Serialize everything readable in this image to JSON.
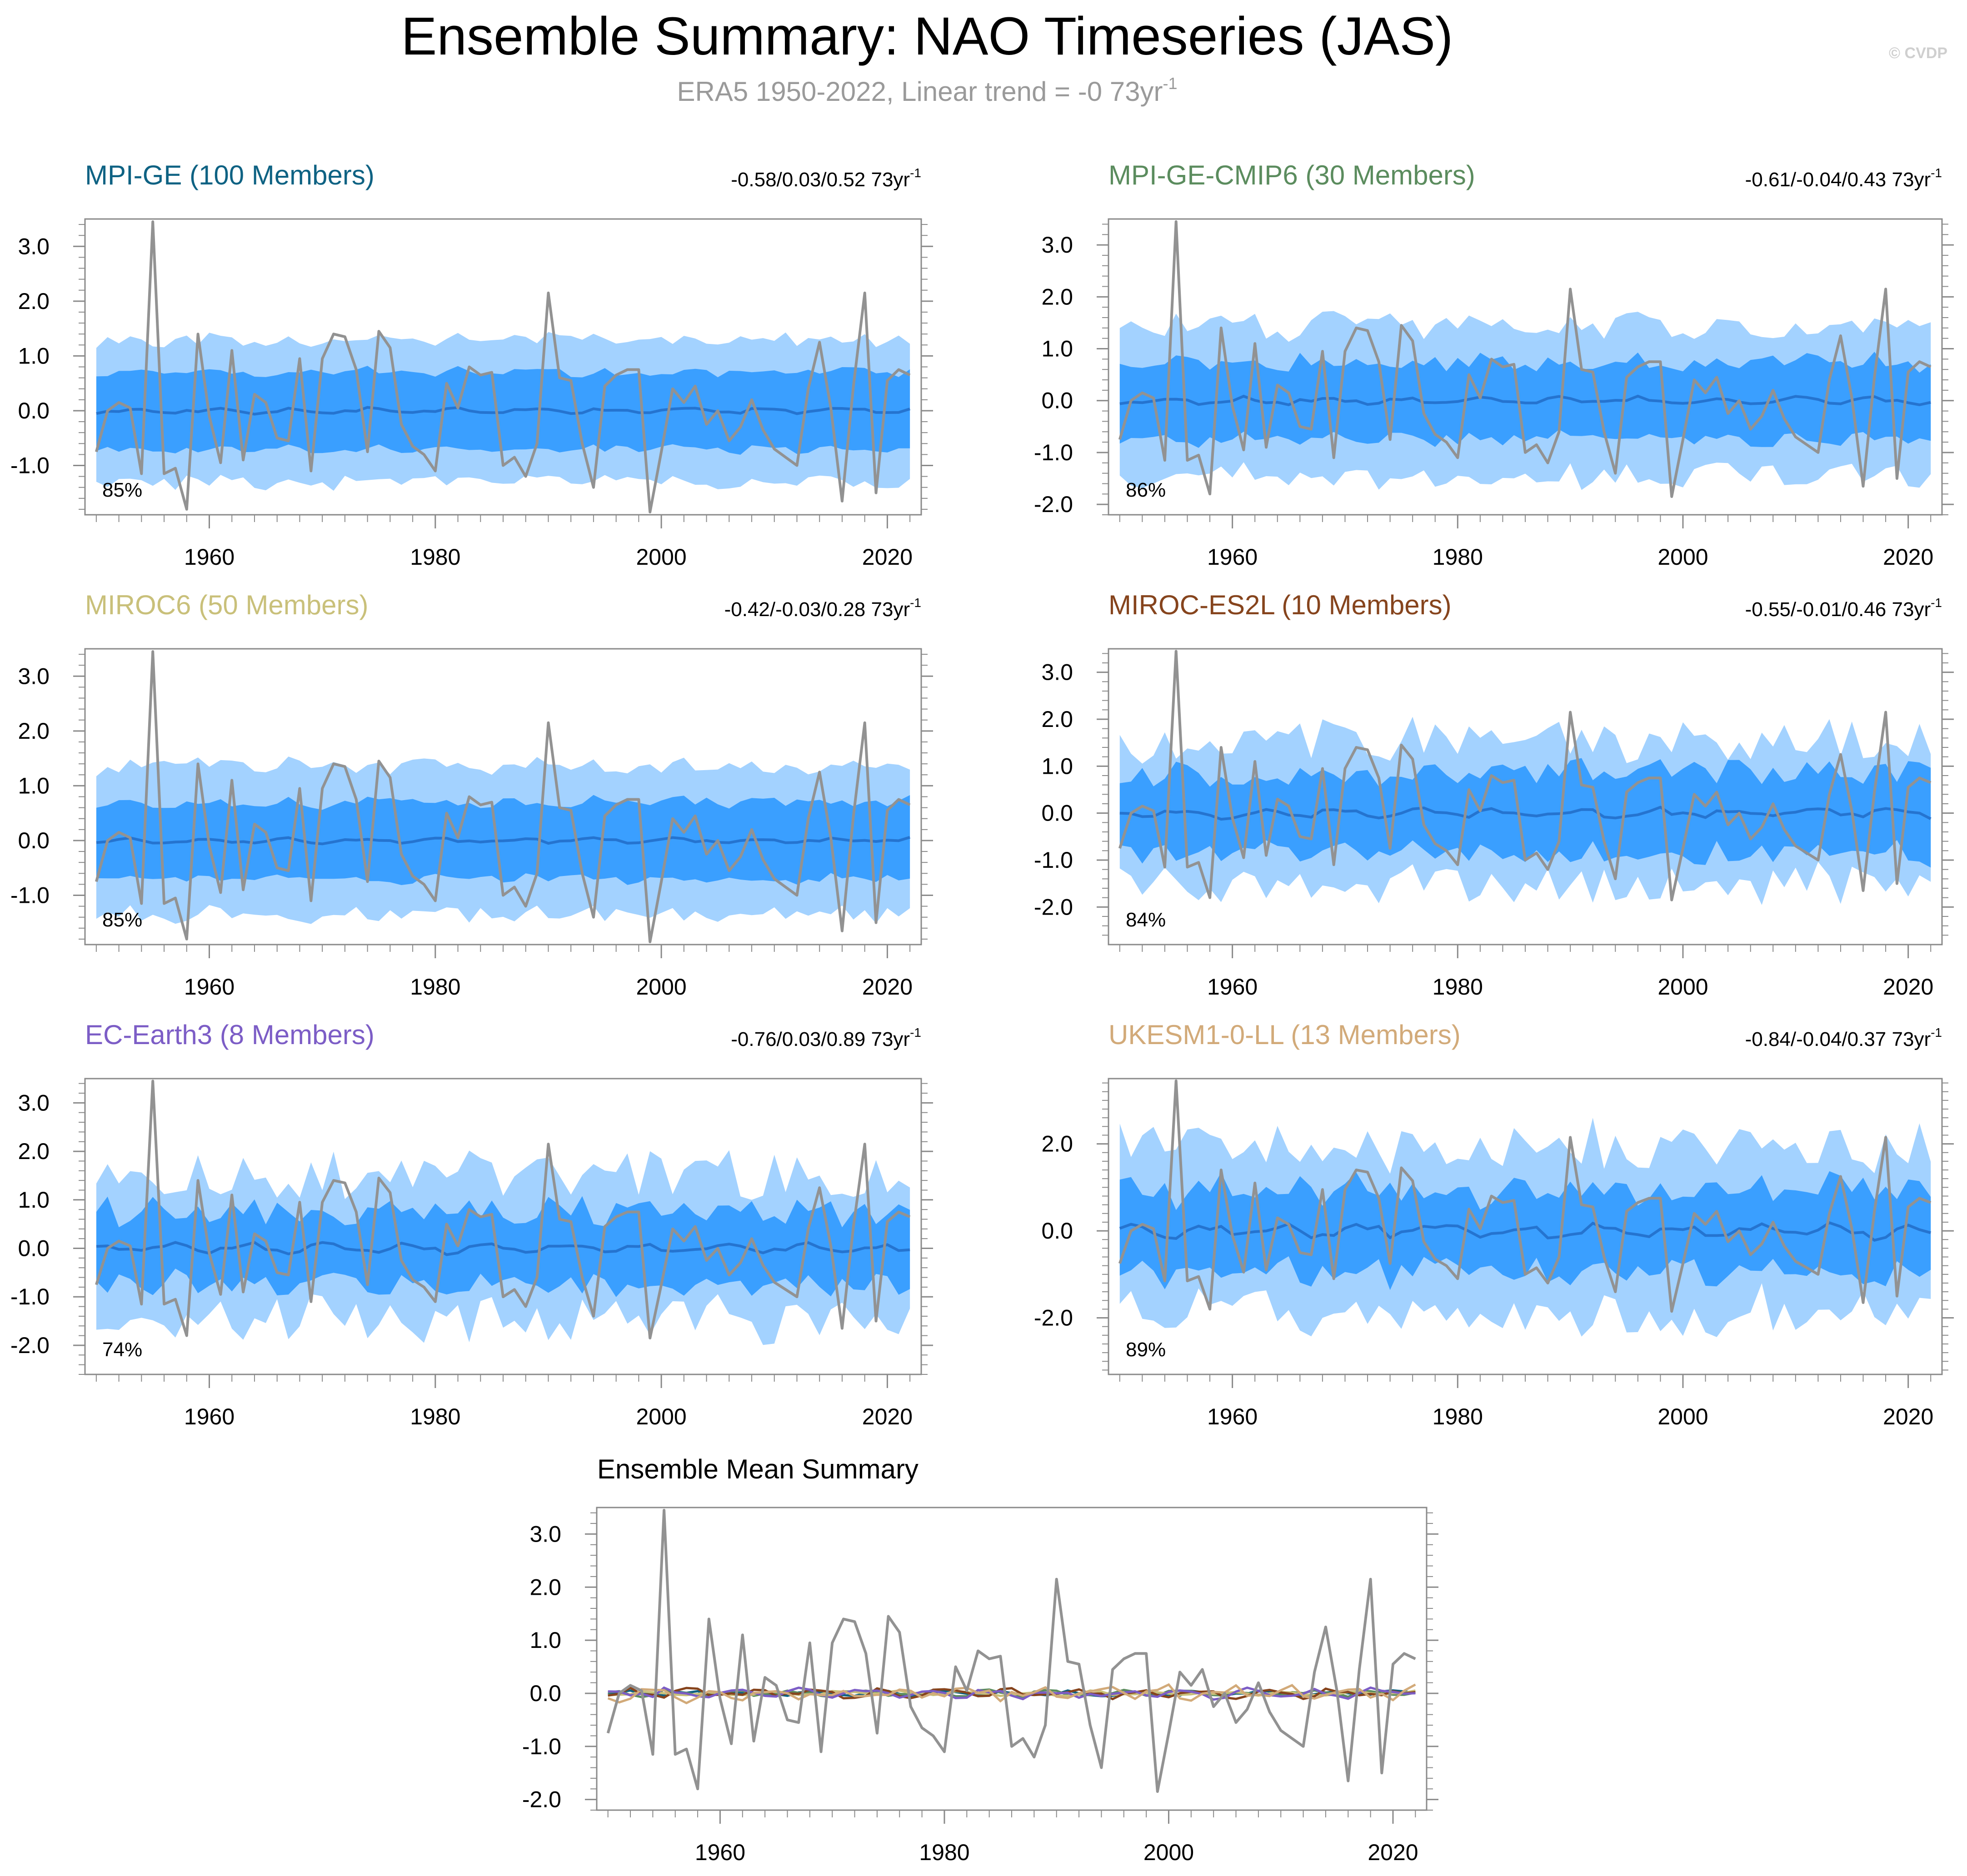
{
  "title": "Ensemble Summary: NAO Timeseries (JAS)",
  "subtitle": {
    "text": "ERA5 1950-2022, Linear trend = -0 73yr",
    "superscript": "-1"
  },
  "credit": "© CVDP",
  "colors": {
    "outer_band": "#a3d2ff",
    "inner_band": "#3a9fff",
    "ensemble_mean": "#2574d0",
    "observations": "#929292",
    "axis": "#8a8a8a"
  },
  "chart_data": [
    {
      "type": "area",
      "title": "MPI-GE (100 Members)",
      "title_color": "#0e6283",
      "trend": "-0.58/0.03/0.52 73yr",
      "trend_sup": "-1",
      "percent": "85%",
      "ylim": [
        -1.9,
        3.5
      ],
      "yticks": [
        -1.0,
        0.0,
        1.0,
        2.0,
        3.0
      ],
      "ytick_labels": [
        "-1.0",
        "0.0",
        "1.0",
        "2.0",
        "3.0"
      ],
      "xlim": [
        1949,
        2023
      ],
      "xticks": [
        1960,
        1980,
        2000,
        2020
      ],
      "xtick_labels": [
        "1960",
        "1980",
        "2000",
        "2020"
      ],
      "outer_halfwidth": 1.3,
      "inner_halfwidth": 0.7,
      "mean_amp": 0.06,
      "jitter": 0.12,
      "seed": 11
    },
    {
      "type": "area",
      "title": "MPI-GE-CMIP6 (30 Members)",
      "title_color": "#5b8c5e",
      "trend": "-0.61/-0.04/0.43 73yr",
      "trend_sup": "-1",
      "percent": "86%",
      "ylim": [
        -2.2,
        3.5
      ],
      "yticks": [
        -2.0,
        -1.0,
        0.0,
        1.0,
        2.0,
        3.0
      ],
      "ytick_labels": [
        "-2.0",
        "-1.0",
        "0.0",
        "1.0",
        "2.0",
        "3.0"
      ],
      "xlim": [
        1949,
        2023
      ],
      "xticks": [
        1960,
        1980,
        2000,
        2020
      ],
      "xtick_labels": [
        "1960",
        "1980",
        "2000",
        "2020"
      ],
      "outer_halfwidth": 1.45,
      "inner_halfwidth": 0.75,
      "mean_amp": 0.08,
      "jitter": 0.25,
      "seed": 23
    },
    {
      "type": "area",
      "title": "MIROC6 (50 Members)",
      "title_color": "#c9c07a",
      "trend": "-0.42/-0.03/0.28 73yr",
      "trend_sup": "-1",
      "percent": "85%",
      "ylim": [
        -1.9,
        3.5
      ],
      "yticks": [
        -1.0,
        0.0,
        1.0,
        2.0,
        3.0
      ],
      "ytick_labels": [
        "-1.0",
        "0.0",
        "1.0",
        "2.0",
        "3.0"
      ],
      "xlim": [
        1949,
        2023
      ],
      "xticks": [
        1960,
        1980,
        2000,
        2020
      ],
      "xtick_labels": [
        "1960",
        "1980",
        "2000",
        "2020"
      ],
      "outer_halfwidth": 1.35,
      "inner_halfwidth": 0.7,
      "mean_amp": 0.06,
      "jitter": 0.15,
      "seed": 37
    },
    {
      "type": "area",
      "title": "MIROC-ES2L (10 Members)",
      "title_color": "#86441d",
      "trend": "-0.55/-0.01/0.46 73yr",
      "trend_sup": "-1",
      "percent": "84%",
      "ylim": [
        -2.8,
        3.5
      ],
      "yticks": [
        -2.0,
        -1.0,
        0.0,
        1.0,
        2.0,
        3.0
      ],
      "ytick_labels": [
        "-2.0",
        "-1.0",
        "0.0",
        "1.0",
        "2.0",
        "3.0"
      ],
      "xlim": [
        1949,
        2023
      ],
      "xticks": [
        1960,
        1980,
        2000,
        2020
      ],
      "xtick_labels": [
        "1960",
        "1980",
        "2000",
        "2020"
      ],
      "outer_halfwidth": 1.55,
      "inner_halfwidth": 0.85,
      "mean_amp": 0.12,
      "jitter": 0.45,
      "seed": 53
    },
    {
      "type": "area",
      "title": "EC-Earth3 (8 Members)",
      "title_color": "#7c5dc6",
      "trend": "-0.76/0.03/0.89 73yr",
      "trend_sup": "-1",
      "percent": "74%",
      "ylim": [
        -2.6,
        3.5
      ],
      "yticks": [
        -2.0,
        -1.0,
        0.0,
        1.0,
        2.0,
        3.0
      ],
      "ytick_labels": [
        "-2.0",
        "-1.0",
        "0.0",
        "1.0",
        "2.0",
        "3.0"
      ],
      "xlim": [
        1949,
        2023
      ],
      "xticks": [
        1960,
        1980,
        2000,
        2020
      ],
      "xtick_labels": [
        "1960",
        "1980",
        "2000",
        "2020"
      ],
      "outer_halfwidth": 1.5,
      "inner_halfwidth": 0.75,
      "mean_amp": 0.12,
      "jitter": 0.5,
      "seed": 71
    },
    {
      "type": "area",
      "title": "UKESM1-0-LL (13 Members)",
      "title_color": "#d2aa79",
      "trend": "-0.84/-0.04/0.37 73yr",
      "trend_sup": "-1",
      "percent": "89%",
      "ylim": [
        -3.3,
        3.5
      ],
      "yticks": [
        -2.0,
        0.0,
        2.0
      ],
      "ytick_labels": [
        "-2.0",
        "0.0",
        "2.0"
      ],
      "xlim": [
        1949,
        2023
      ],
      "xticks": [
        1960,
        1980,
        2000,
        2020
      ],
      "xtick_labels": [
        "1960",
        "1980",
        "2000",
        "2020"
      ],
      "outer_halfwidth": 1.9,
      "inner_halfwidth": 0.95,
      "mean_amp": 0.2,
      "jitter": 0.55,
      "seed": 89
    },
    {
      "type": "line",
      "title": "Ensemble Mean Summary",
      "ylim": [
        -2.2,
        3.5
      ],
      "yticks": [
        -2.0,
        -1.0,
        0.0,
        1.0,
        2.0,
        3.0
      ],
      "ytick_labels": [
        "-2.0",
        "-1.0",
        "0.0",
        "1.0",
        "2.0",
        "3.0"
      ],
      "xlim": [
        1949,
        2023
      ],
      "xticks": [
        1960,
        1980,
        2000,
        2020
      ],
      "xtick_labels": [
        "1960",
        "1980",
        "2000",
        "2020"
      ],
      "series_colors": [
        "#0e6283",
        "#5b8c5e",
        "#c9c07a",
        "#86441d",
        "#7c5dc6",
        "#d2aa79"
      ],
      "series_amp": [
        0.06,
        0.08,
        0.06,
        0.12,
        0.12,
        0.2
      ]
    }
  ],
  "observed": {
    "name": "ERA5",
    "x": [
      1950,
      1951,
      1952,
      1953,
      1954,
      1955,
      1956,
      1957,
      1958,
      1959,
      1960,
      1961,
      1962,
      1963,
      1964,
      1965,
      1966,
      1967,
      1968,
      1969,
      1970,
      1971,
      1972,
      1973,
      1974,
      1975,
      1976,
      1977,
      1978,
      1979,
      1980,
      1981,
      1982,
      1983,
      1984,
      1985,
      1986,
      1987,
      1988,
      1989,
      1990,
      1991,
      1992,
      1993,
      1994,
      1995,
      1996,
      1997,
      1998,
      1999,
      2000,
      2001,
      2002,
      2003,
      2004,
      2005,
      2006,
      2007,
      2008,
      2009,
      2010,
      2011,
      2012,
      2013,
      2014,
      2015,
      2016,
      2017,
      2018,
      2019,
      2020,
      2021,
      2022
    ],
    "y": [
      -0.75,
      0.0,
      0.15,
      0.05,
      -1.15,
      3.45,
      -1.15,
      -1.05,
      -1.8,
      1.4,
      -0.1,
      -0.95,
      1.1,
      -0.9,
      0.3,
      0.15,
      -0.5,
      -0.55,
      0.95,
      -1.1,
      0.95,
      1.4,
      1.35,
      0.75,
      -0.75,
      1.45,
      1.15,
      -0.25,
      -0.65,
      -0.8,
      -1.1,
      0.5,
      0.05,
      0.8,
      0.65,
      0.7,
      -1.0,
      -0.85,
      -1.2,
      -0.6,
      2.15,
      0.6,
      0.55,
      -0.6,
      -1.4,
      0.45,
      0.65,
      0.75,
      0.75,
      -1.85,
      -0.75,
      0.4,
      0.15,
      0.45,
      -0.25,
      0.0,
      -0.55,
      -0.3,
      0.2,
      -0.35,
      -0.7,
      -0.85,
      -1.0,
      0.4,
      1.25,
      0.05,
      -1.65,
      0.45,
      2.15,
      -1.5,
      0.55,
      0.75,
      0.65
    ]
  }
}
